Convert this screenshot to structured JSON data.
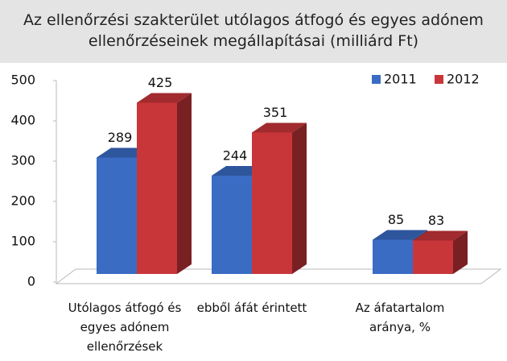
{
  "chart_data": {
    "type": "bar3d",
    "title": "Az ellenőrzési szakterület utólagos átfogó és egyes adónem ellenőrzéseinek megállapításai (milliárd Ft)",
    "categories": [
      "Utólagos átfogó és egyes adónem ellenőrzések",
      "ebből áfát érintett",
      "Az áfatartalom aránya, %"
    ],
    "series": [
      {
        "name": "2011",
        "color": "#3a6cc4",
        "values": [
          289,
          244,
          85
        ]
      },
      {
        "name": "2012",
        "color": "#c9363a",
        "values": [
          425,
          351,
          83
        ]
      }
    ],
    "ylim": [
      0,
      500
    ],
    "yticks": [
      0,
      100,
      200,
      300,
      400,
      500
    ],
    "legend": "top-right"
  }
}
